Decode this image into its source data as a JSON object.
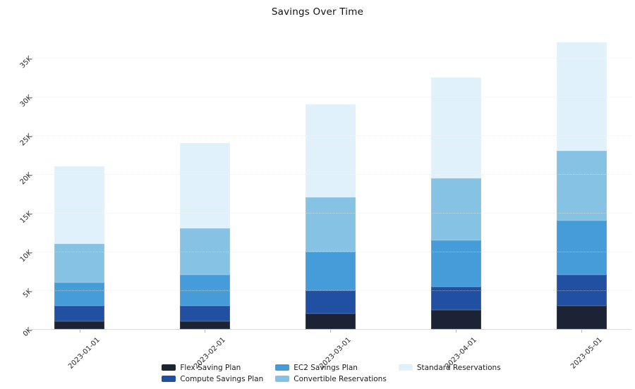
{
  "chart_data": {
    "type": "bar",
    "stacked": true,
    "title": "Savings Over Time",
    "categories": [
      "2023-01-01",
      "2023-02-01",
      "2023-03-01",
      "2023-04-01",
      "2023-05-01"
    ],
    "series": [
      {
        "name": "Flex Saving Plan",
        "color": "#1b2335",
        "values": [
          1000,
          1000,
          2000,
          2500,
          3000
        ]
      },
      {
        "name": "Compute Savings Plan",
        "color": "#2150a3",
        "values": [
          2000,
          2000,
          3000,
          3000,
          4000
        ]
      },
      {
        "name": "EC2 Savings Plan",
        "color": "#459cd9",
        "values": [
          3000,
          4000,
          5000,
          6000,
          7000
        ]
      },
      {
        "name": "Convertible Reservations",
        "color": "#85c2e4",
        "values": [
          5000,
          6000,
          7000,
          8000,
          9000
        ]
      },
      {
        "name": "Standard Reservations",
        "color": "#e1f1fb",
        "values": [
          10000,
          11000,
          12000,
          13000,
          14000
        ]
      }
    ],
    "totals": [
      21000,
      24000,
      29000,
      32500,
      37000
    ],
    "yticks": [
      {
        "value": 0,
        "label": "0K"
      },
      {
        "value": 5000,
        "label": "5K"
      },
      {
        "value": 10000,
        "label": "10K"
      },
      {
        "value": 15000,
        "label": "15K"
      },
      {
        "value": 20000,
        "label": "20K"
      },
      {
        "value": 25000,
        "label": "25K"
      },
      {
        "value": 30000,
        "label": "30K"
      },
      {
        "value": 35000,
        "label": "35K"
      }
    ],
    "ylim": [
      0,
      38800
    ],
    "xlabel": "",
    "ylabel": "",
    "grid": "horizontal-dotted",
    "legend_position": "bottom-center",
    "tick_angle_deg": 45
  },
  "colors": {
    "background": "#ffffff",
    "gridline": "#e3e3e3",
    "axis_line": "#d9d9d9",
    "tick_text": "#262626",
    "title_text": "#111111"
  }
}
